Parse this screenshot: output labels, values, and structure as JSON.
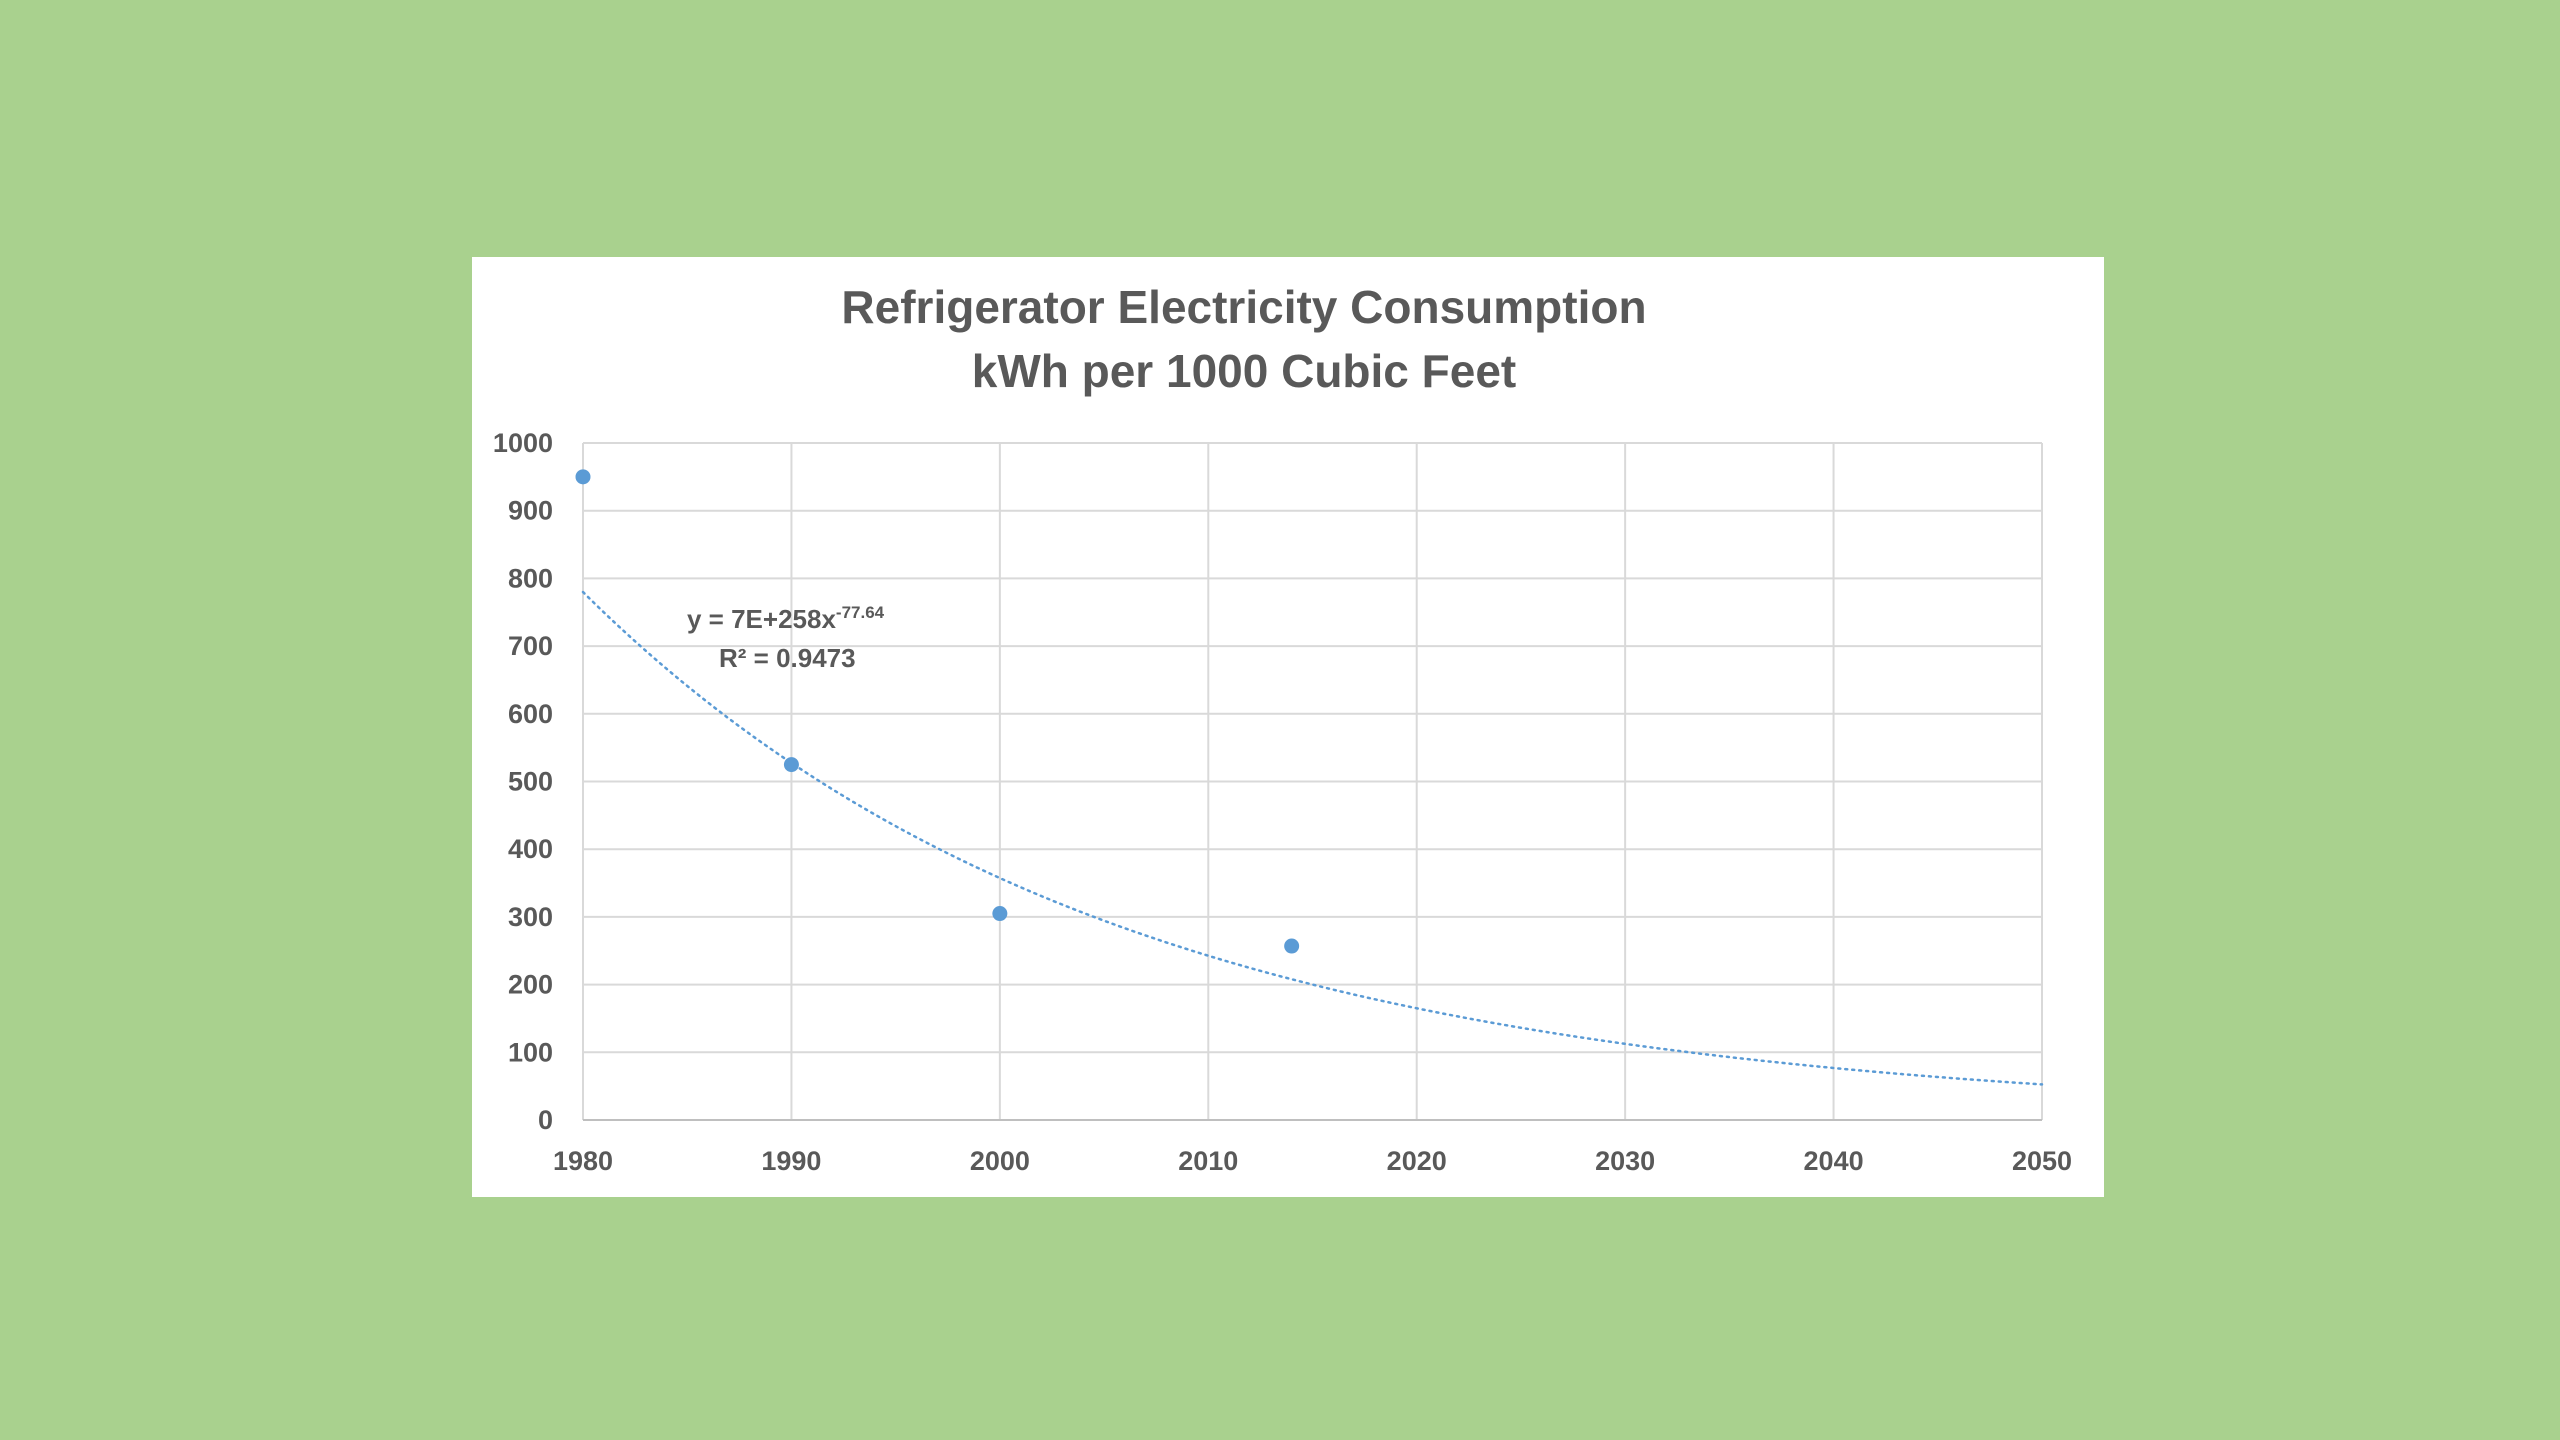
{
  "chart_data": {
    "type": "scatter",
    "title": "Refrigerator Electricity Consumption",
    "subtitle": "kWh per 1000 Cubic Feet",
    "xlabel": "",
    "ylabel": "",
    "xlim": [
      1980,
      2050
    ],
    "ylim": [
      0,
      1000
    ],
    "x_ticks": [
      "1980",
      "1990",
      "2000",
      "2010",
      "2020",
      "2030",
      "2040",
      "2050"
    ],
    "y_ticks": [
      "0",
      "100",
      "200",
      "300",
      "400",
      "500",
      "600",
      "700",
      "800",
      "900",
      "1000"
    ],
    "grid": true,
    "legend": "none",
    "points": [
      {
        "x": 1980,
        "y": 950
      },
      {
        "x": 1990,
        "y": 525
      },
      {
        "x": 2000,
        "y": 305
      },
      {
        "x": 2014,
        "y": 257
      }
    ],
    "trendline": {
      "type": "power",
      "equation_text": "y = 7E+258x",
      "equation_exponent": "-77.64",
      "r_squared_text": "R² = 0.9473",
      "coefficient": 7e+258,
      "exponent": -77.64,
      "style": "dotted"
    },
    "colors": {
      "point": "#5b9bd5",
      "trendline": "#5b9bd5",
      "grid": "#d9d9d9",
      "background": "#a9d18e",
      "plot_background": "#ffffff"
    }
  }
}
